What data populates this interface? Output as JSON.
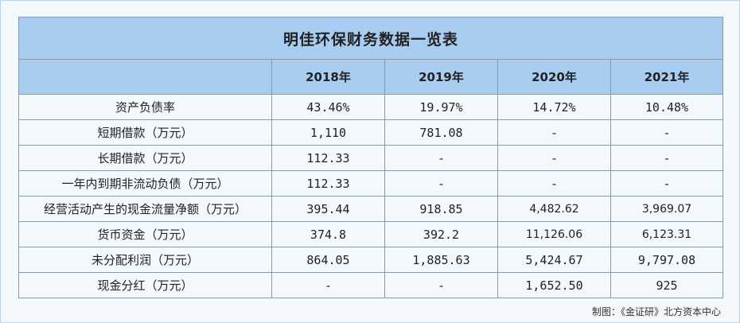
{
  "table": {
    "title": "明佳环保财务数据一览表",
    "headers": [
      "",
      "2018年",
      "2019年",
      "2020年",
      "2021年"
    ],
    "rows": [
      {
        "label": "资产负债率",
        "values": [
          "43.46%",
          "19.97%",
          "14.72%",
          "10.48%"
        ],
        "styles": [
          "mono",
          "mono",
          "mono",
          "mono"
        ]
      },
      {
        "label": "短期借款（万元）",
        "values": [
          "1,110",
          "781.08",
          "-",
          "-"
        ],
        "styles": [
          "mono",
          "mono",
          "mono",
          "mono"
        ]
      },
      {
        "label": "长期借款（万元）",
        "values": [
          "112.33",
          "-",
          "-",
          "-"
        ],
        "styles": [
          "mono",
          "mono",
          "mono",
          "mono"
        ]
      },
      {
        "label": "一年内到期非流动负债（万元）",
        "values": [
          "112.33",
          "-",
          "-",
          "-"
        ],
        "styles": [
          "mono",
          "mono",
          "mono",
          "mono"
        ]
      },
      {
        "label": "经营活动产生的现金流量净额（万元）",
        "values": [
          "395.44",
          "918.85",
          "4,482.62",
          "3,969.07"
        ],
        "styles": [
          "mono",
          "mono",
          "sans",
          "sans"
        ]
      },
      {
        "label": "货币资金（万元）",
        "values": [
          "374.8",
          "392.2",
          "11,126.06",
          "6,123.31"
        ],
        "styles": [
          "mono",
          "mono",
          "sans",
          "sans"
        ]
      },
      {
        "label": "未分配利润（万元）",
        "values": [
          "864.05",
          "1,885.63",
          "5,424.67",
          "9,797.08"
        ],
        "styles": [
          "mono",
          "mono",
          "mono",
          "mono"
        ]
      },
      {
        "label": "现金分红（万元）",
        "values": [
          "-",
          "-",
          "1,652.50",
          "925"
        ],
        "styles": [
          "mono",
          "mono",
          "mono",
          "mono"
        ]
      }
    ]
  },
  "source": "制图：《金证研》北方资本中心"
}
